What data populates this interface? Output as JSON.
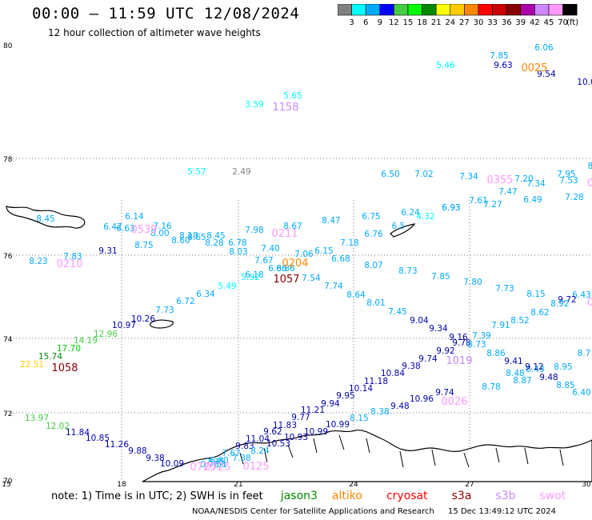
{
  "header": {
    "title": "00:00 — 11:59 UTC 12/08/2024",
    "subtitle": "12 hour collection of altimeter wave heights"
  },
  "colorbar": {
    "unit": "(ft)",
    "ticks": [
      "3",
      "6",
      "9",
      "12",
      "15",
      "18",
      "21",
      "24",
      "27",
      "30",
      "33",
      "36",
      "39",
      "42",
      "45",
      "70"
    ],
    "colors": [
      "#808080",
      "#00ffff",
      "#00aaff",
      "#0000ff",
      "#44cc44",
      "#00ff00",
      "#008800",
      "#ffff00",
      "#ffcc00",
      "#ff8800",
      "#ff0000",
      "#cc0000",
      "#880000",
      "#aa00aa",
      "#cc88ff",
      "#ff99ff",
      "#000000"
    ]
  },
  "axes": {
    "lat_labels": [
      "80",
      "78",
      "76",
      "74",
      "72",
      "70"
    ],
    "lon_labels": [
      "15",
      "18",
      "21",
      "24",
      "27",
      "30"
    ]
  },
  "wave_heights": [
    {
      "t": "6.06",
      "c": "#00aaff"
    },
    {
      "t": "7.85",
      "c": "#00aaff"
    },
    {
      "t": "5.46",
      "c": "#00ffff"
    },
    {
      "t": "9.63",
      "c": "#0000aa"
    },
    {
      "t": "9.54",
      "c": "#0000aa"
    },
    {
      "t": "10.0",
      "c": "#0000aa"
    },
    {
      "t": "5.65",
      "c": "#00ffff"
    },
    {
      "t": "3.59",
      "c": "#00ffff"
    },
    {
      "t": "5.57",
      "c": "#00ffff"
    },
    {
      "t": "2.49",
      "c": "#808080"
    },
    {
      "t": "6.50",
      "c": "#00aaff"
    },
    {
      "t": "7.02",
      "c": "#00aaff"
    },
    {
      "t": "7.34",
      "c": "#00aaff"
    },
    {
      "t": "7.20",
      "c": "#00aaff"
    },
    {
      "t": "7.95",
      "c": "#00aaff"
    },
    {
      "t": "8",
      "c": "#00aaff"
    },
    {
      "t": "7.34",
      "c": "#00aaff"
    },
    {
      "t": "7.53",
      "c": "#00aaff"
    },
    {
      "t": "7.47",
      "c": "#00aaff"
    },
    {
      "t": "7.61",
      "c": "#00aaff"
    },
    {
      "t": "7.27",
      "c": "#00aaff"
    },
    {
      "t": "6.49",
      "c": "#00aaff"
    },
    {
      "t": "7.28",
      "c": "#00aaff"
    },
    {
      "t": "6.24",
      "c": "#00aaff"
    },
    {
      "t": "6.93",
      "c": "#00aaff"
    },
    {
      "t": "6.93",
      "c": "#00aaff"
    },
    {
      "t": "4.32",
      "c": "#00ffff"
    },
    {
      "t": "6.75",
      "c": "#00aaff"
    },
    {
      "t": "6.5",
      "c": "#00aaff"
    },
    {
      "t": "6.76",
      "c": "#00aaff"
    },
    {
      "t": "8.45",
      "c": "#00aaff"
    },
    {
      "t": "6.14",
      "c": "#00aaff"
    },
    {
      "t": "6.47",
      "c": "#00aaff"
    },
    {
      "t": "6.63",
      "c": "#00aaff"
    },
    {
      "t": "7.16",
      "c": "#00aaff"
    },
    {
      "t": "8.00",
      "c": "#00aaff"
    },
    {
      "t": "8.75",
      "c": "#00aaff"
    },
    {
      "t": "8.18",
      "c": "#00aaff"
    },
    {
      "t": "8.60",
      "c": "#00aaff"
    },
    {
      "t": "8.65",
      "c": "#00aaff"
    },
    {
      "t": "8.45",
      "c": "#00aaff"
    },
    {
      "t": "8.28",
      "c": "#00aaff"
    },
    {
      "t": "6.78",
      "c": "#00aaff"
    },
    {
      "t": "8.03",
      "c": "#00aaff"
    },
    {
      "t": "7.98",
      "c": "#00aaff"
    },
    {
      "t": "8.67",
      "c": "#00aaff"
    },
    {
      "t": "8.47",
      "c": "#00aaff"
    },
    {
      "t": "7.40",
      "c": "#00aaff"
    },
    {
      "t": "7.18",
      "c": "#00aaff"
    },
    {
      "t": "8.23",
      "c": "#00aaff"
    },
    {
      "t": "7.83",
      "c": "#00aaff"
    },
    {
      "t": "9.31",
      "c": "#0000aa"
    },
    {
      "t": "7.67",
      "c": "#00aaff"
    },
    {
      "t": "7.06",
      "c": "#00aaff"
    },
    {
      "t": "6.15",
      "c": "#00aaff"
    },
    {
      "t": "6.68",
      "c": "#00aaff"
    },
    {
      "t": "6.86",
      "c": "#00aaff"
    },
    {
      "t": "6.86",
      "c": "#00aaff"
    },
    {
      "t": "8.07",
      "c": "#00aaff"
    },
    {
      "t": "6.18",
      "c": "#00aaff"
    },
    {
      "t": "5.92",
      "c": "#00ffff"
    },
    {
      "t": "7.54",
      "c": "#00aaff"
    },
    {
      "t": "8.73",
      "c": "#00aaff"
    },
    {
      "t": "7.85",
      "c": "#00aaff"
    },
    {
      "t": "7.80",
      "c": "#00aaff"
    },
    {
      "t": "7.73",
      "c": "#00aaff"
    },
    {
      "t": "5.49",
      "c": "#00ffff"
    },
    {
      "t": "7.74",
      "c": "#00aaff"
    },
    {
      "t": "8.15",
      "c": "#00aaff"
    },
    {
      "t": "6.43",
      "c": "#00aaff"
    },
    {
      "t": "6.34",
      "c": "#00aaff"
    },
    {
      "t": "8.64",
      "c": "#00aaff"
    },
    {
      "t": "9.72",
      "c": "#0000aa"
    },
    {
      "t": "8.92",
      "c": "#00aaff"
    },
    {
      "t": "6.72",
      "c": "#00aaff"
    },
    {
      "t": "8.01",
      "c": "#00aaff"
    },
    {
      "t": "7.73",
      "c": "#00aaff"
    },
    {
      "t": "7.45",
      "c": "#00aaff"
    },
    {
      "t": "8.62",
      "c": "#00aaff"
    },
    {
      "t": "10.26",
      "c": "#0000aa"
    },
    {
      "t": "9.04",
      "c": "#0000aa"
    },
    {
      "t": "8.52",
      "c": "#00aaff"
    },
    {
      "t": "10.97",
      "c": "#0000aa"
    },
    {
      "t": "9.34",
      "c": "#0000aa"
    },
    {
      "t": "7.91",
      "c": "#00aaff"
    },
    {
      "t": "9.16",
      "c": "#0000aa"
    },
    {
      "t": "7.39",
      "c": "#00aaff"
    },
    {
      "t": "12.96",
      "c": "#44cc44"
    },
    {
      "t": "9.78",
      "c": "#0000aa"
    },
    {
      "t": "8.73",
      "c": "#00aaff"
    },
    {
      "t": "14.19",
      "c": "#44cc44"
    },
    {
      "t": "9.92",
      "c": "#0000aa"
    },
    {
      "t": "8.86",
      "c": "#00aaff"
    },
    {
      "t": "8.7",
      "c": "#00aaff"
    },
    {
      "t": "17.70",
      "c": "#00cc00"
    },
    {
      "t": "9.74",
      "c": "#0000aa"
    },
    {
      "t": "9.41",
      "c": "#0000aa"
    },
    {
      "t": "8.95",
      "c": "#00aaff"
    },
    {
      "t": "15.74",
      "c": "#008800"
    },
    {
      "t": "9.38",
      "c": "#0000aa"
    },
    {
      "t": "8.48",
      "c": "#00aaff"
    },
    {
      "t": "8.43",
      "c": "#00aaff"
    },
    {
      "t": "9.12",
      "c": "#0000aa"
    },
    {
      "t": "22.51",
      "c": "#ffcc00"
    },
    {
      "t": "10.84",
      "c": "#0000aa"
    },
    {
      "t": "9.48",
      "c": "#0000aa"
    },
    {
      "t": "8.87",
      "c": "#00aaff"
    },
    {
      "t": "11.18",
      "c": "#0000aa"
    },
    {
      "t": "8.78",
      "c": "#00aaff"
    },
    {
      "t": "8.85",
      "c": "#00aaff"
    },
    {
      "t": "10.14",
      "c": "#0000aa"
    },
    {
      "t": "6.40",
      "c": "#00aaff"
    },
    {
      "t": "9.95",
      "c": "#0000aa"
    },
    {
      "t": "9.74",
      "c": "#0000aa"
    },
    {
      "t": "10.96",
      "c": "#0000aa"
    },
    {
      "t": "9.94",
      "c": "#0000aa"
    },
    {
      "t": "9.48",
      "c": "#0000aa"
    },
    {
      "t": "8.38",
      "c": "#00aaff"
    },
    {
      "t": "8.15",
      "c": "#00aaff"
    },
    {
      "t": "11.21",
      "c": "#0000aa"
    },
    {
      "t": "13.97",
      "c": "#44cc44"
    },
    {
      "t": "9.77",
      "c": "#0000aa"
    },
    {
      "t": "10.99",
      "c": "#0000aa"
    },
    {
      "t": "12.02",
      "c": "#44cc44"
    },
    {
      "t": "11.83",
      "c": "#0000aa"
    },
    {
      "t": "10.99",
      "c": "#0000aa"
    },
    {
      "t": "11.84",
      "c": "#0000aa"
    },
    {
      "t": "9.62",
      "c": "#0000aa"
    },
    {
      "t": "10.93",
      "c": "#0000aa"
    },
    {
      "t": "10.85",
      "c": "#0000aa"
    },
    {
      "t": "11.04",
      "c": "#0000aa"
    },
    {
      "t": "10.53",
      "c": "#0000aa"
    },
    {
      "t": "11.26",
      "c": "#0000aa"
    },
    {
      "t": "9.83",
      "c": "#0000aa"
    },
    {
      "t": "9.88",
      "c": "#0000aa"
    },
    {
      "t": "7.67",
      "c": "#00aaff"
    },
    {
      "t": "8.24",
      "c": "#00aaff"
    },
    {
      "t": "9.38",
      "c": "#0000aa"
    },
    {
      "t": "6.80",
      "c": "#00aaff"
    },
    {
      "t": "7.38",
      "c": "#00aaff"
    },
    {
      "t": "10.09",
      "c": "#0000aa"
    },
    {
      "t": "7.75",
      "c": "#00aaff"
    },
    {
      "t": "0.76",
      "c": "#00aaff"
    },
    {
      "t": "7.51",
      "c": "#00aaff"
    }
  ],
  "time_stamps": [
    {
      "t": "0025",
      "c": "#ff8800"
    },
    {
      "t": "1158",
      "c": "#cc88ff"
    },
    {
      "t": "0355",
      "c": "#ff99ff"
    },
    {
      "t": "0",
      "c": "#ff99ff"
    },
    {
      "t": "0539",
      "c": "#ff99ff"
    },
    {
      "t": "0211",
      "c": "#ff99ff"
    },
    {
      "t": "0210",
      "c": "#ff99ff"
    },
    {
      "t": "0204",
      "c": "#ff8800"
    },
    {
      "t": "1057",
      "c": "#880000"
    },
    {
      "t": "0",
      "c": "#ff99ff"
    },
    {
      "t": "1019",
      "c": "#cc88ff"
    },
    {
      "t": "1058",
      "c": "#880000"
    },
    {
      "t": "0026",
      "c": "#ff99ff"
    },
    {
      "t": "0725",
      "c": "#ff99ff"
    },
    {
      "t": "0725",
      "c": "#ff99ff"
    },
    {
      "t": "0125",
      "c": "#ff99ff"
    }
  ],
  "note": {
    "text": "note:  1) Time is in UTC; 2) SWH is in feet",
    "satellites": [
      {
        "name": "jason3",
        "color": "#008800"
      },
      {
        "name": "altiko",
        "color": "#ff8800"
      },
      {
        "name": "cryosat",
        "color": "#ff0000"
      },
      {
        "name": "s3a",
        "color": "#880000"
      },
      {
        "name": "s3b",
        "color": "#cc88ff"
      },
      {
        "name": "swot",
        "color": "#ff99ff"
      }
    ]
  },
  "footer": {
    "credit": "NOAA/NESDIS Center for Satellite Applications and Research",
    "timestamp": "15 Dec 13:49:12 UTC 2024"
  }
}
